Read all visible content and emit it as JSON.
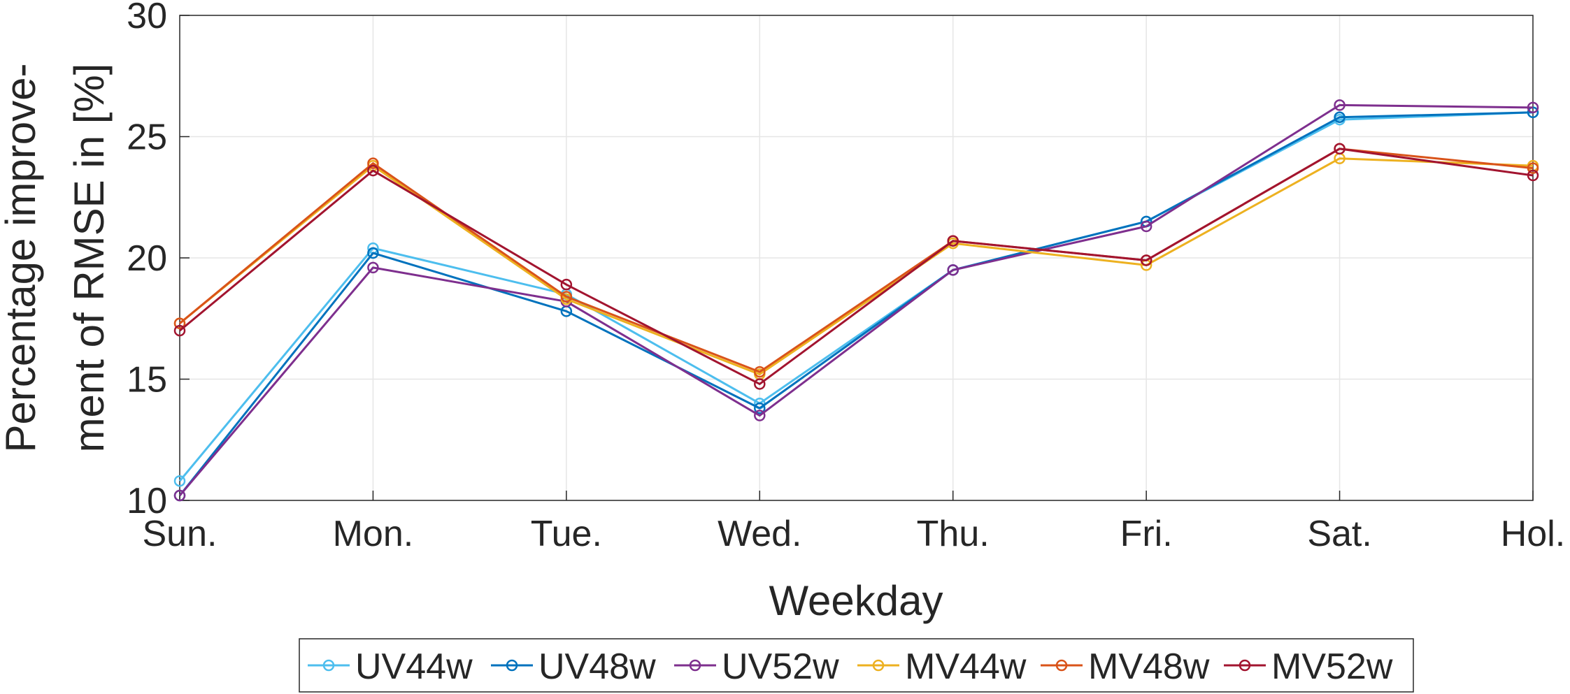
{
  "chart_data": {
    "type": "line",
    "title": "",
    "xlabel": "Weekday",
    "ylabel_lines": [
      "Percentage improve-",
      "ment of RMSE in [%]"
    ],
    "categories": [
      "Sun.",
      "Mon.",
      "Tue.",
      "Wed.",
      "Thu.",
      "Fri.",
      "Sat.",
      "Hol."
    ],
    "ylim": [
      10,
      30
    ],
    "yticks": [
      10,
      15,
      20,
      25,
      30
    ],
    "grid": true,
    "legend_position": "bottom",
    "marker": "circle",
    "series": [
      {
        "name": "UV44w",
        "color": "#4DBEEE",
        "values": [
          10.8,
          20.4,
          18.5,
          14.0,
          19.5,
          21.5,
          25.7,
          26.0
        ]
      },
      {
        "name": "UV48w",
        "color": "#0072BD",
        "values": [
          10.2,
          20.2,
          17.8,
          13.8,
          19.5,
          21.5,
          25.8,
          26.0
        ]
      },
      {
        "name": "UV52w",
        "color": "#7E2F8E",
        "values": [
          10.2,
          19.6,
          18.2,
          13.5,
          19.5,
          21.3,
          26.3,
          26.2
        ]
      },
      {
        "name": "MV44w",
        "color": "#EDB120",
        "values": [
          17.3,
          23.8,
          18.3,
          15.2,
          20.6,
          19.7,
          24.1,
          23.8
        ]
      },
      {
        "name": "MV48w",
        "color": "#D95319",
        "values": [
          17.3,
          23.9,
          18.4,
          15.3,
          20.7,
          19.9,
          24.5,
          23.7
        ]
      },
      {
        "name": "MV52w",
        "color": "#A2142F",
        "values": [
          17.0,
          23.6,
          18.9,
          14.8,
          20.7,
          19.9,
          24.5,
          23.4
        ]
      }
    ]
  }
}
